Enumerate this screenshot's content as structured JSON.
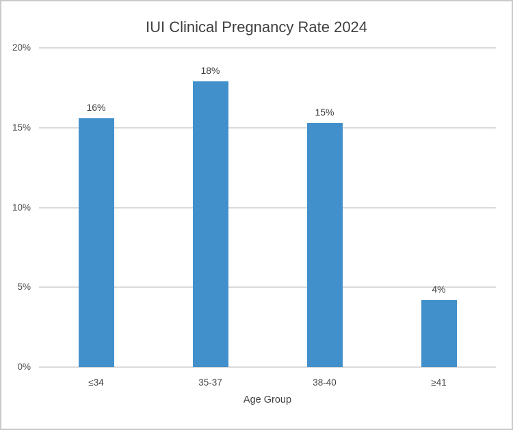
{
  "chart_data": {
    "type": "bar",
    "title": "IUI Clinical Pregnancy Rate 2024",
    "xlabel": "Age Group",
    "ylabel": "",
    "categories": [
      "≤34",
      "35-37",
      "38-40",
      "≥41"
    ],
    "values": [
      15.6,
      17.9,
      15.3,
      4.2
    ],
    "value_labels": [
      "16%",
      "18%",
      "15%",
      "4%"
    ],
    "ylim": [
      0,
      20
    ],
    "ytick_values": [
      0,
      5,
      10,
      15,
      20
    ],
    "ytick_labels": [
      "0%",
      "5%",
      "10%",
      "15%",
      "20%"
    ],
    "grid": "horizontal",
    "legend": "none",
    "bar_color": "#4190cb",
    "gridline_color": "#dadada"
  }
}
